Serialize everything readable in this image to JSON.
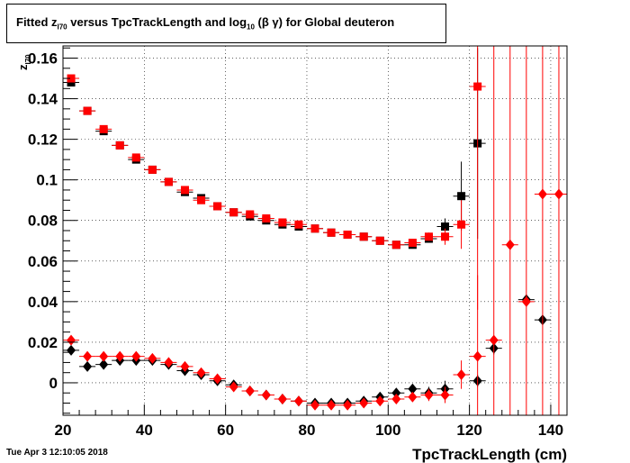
{
  "title": {
    "part1": "Fitted  z",
    "sub1": "I70",
    "part2": "  versus TpcTrackLength and log",
    "sub2": "10",
    "part3": " (β γ) for Global deuteron"
  },
  "timestamp": "Tue Apr  3 12:10:05 2018",
  "chart_data": {
    "type": "scatter",
    "xlabel": "TpcTrackLength (cm)",
    "ylabel": "z",
    "ylabel_sub": "I70",
    "xlim": [
      20,
      144
    ],
    "ylim": [
      -0.016,
      0.166
    ],
    "x_ticks": [
      20,
      40,
      60,
      80,
      100,
      120,
      140
    ],
    "x_tick_labels": [
      "20",
      "40",
      "60",
      "80",
      "100",
      "120",
      "140"
    ],
    "y_ticks": [
      0,
      0.02,
      0.04,
      0.06,
      0.08,
      0.1,
      0.12,
      0.14,
      0.16
    ],
    "y_tick_labels": [
      "0",
      "0.02",
      "0.04",
      "0.06",
      "0.08",
      "0.1",
      "0.12",
      "0.14",
      "0.16"
    ],
    "grid": true,
    "series": [
      {
        "marker": "square",
        "color": "#000000",
        "points": [
          [
            22,
            0.148,
            0
          ],
          [
            26,
            0.134,
            0
          ],
          [
            30,
            0.124,
            0
          ],
          [
            34,
            0.117,
            0
          ],
          [
            38,
            0.11,
            0
          ],
          [
            42,
            0.105,
            0
          ],
          [
            46,
            0.099,
            0
          ],
          [
            50,
            0.094,
            0
          ],
          [
            54,
            0.091,
            0
          ],
          [
            58,
            0.087,
            0
          ],
          [
            62,
            0.084,
            0
          ],
          [
            66,
            0.082,
            0
          ],
          [
            70,
            0.08,
            0
          ],
          [
            74,
            0.078,
            0
          ],
          [
            78,
            0.077,
            0
          ],
          [
            82,
            0.076,
            0
          ],
          [
            86,
            0.074,
            0
          ],
          [
            90,
            0.073,
            0
          ],
          [
            94,
            0.072,
            0
          ],
          [
            98,
            0.07,
            0
          ],
          [
            102,
            0.068,
            0
          ],
          [
            106,
            0.068,
            0
          ],
          [
            110,
            0.071,
            0.002
          ],
          [
            114,
            0.077,
            0.004
          ],
          [
            118,
            0.092,
            0.017
          ],
          [
            122,
            0.118,
            0.047
          ]
        ]
      },
      {
        "marker": "square",
        "color": "#ff0000",
        "points": [
          [
            22,
            0.15,
            0
          ],
          [
            26,
            0.134,
            0
          ],
          [
            30,
            0.125,
            0
          ],
          [
            34,
            0.117,
            0
          ],
          [
            38,
            0.111,
            0
          ],
          [
            42,
            0.105,
            0
          ],
          [
            46,
            0.099,
            0
          ],
          [
            50,
            0.095,
            0
          ],
          [
            54,
            0.09,
            0
          ],
          [
            58,
            0.087,
            0
          ],
          [
            62,
            0.084,
            0
          ],
          [
            66,
            0.083,
            0
          ],
          [
            70,
            0.081,
            0
          ],
          [
            74,
            0.079,
            0
          ],
          [
            78,
            0.078,
            0
          ],
          [
            82,
            0.076,
            0
          ],
          [
            86,
            0.074,
            0
          ],
          [
            90,
            0.073,
            0
          ],
          [
            94,
            0.072,
            0
          ],
          [
            98,
            0.07,
            0
          ],
          [
            102,
            0.068,
            0
          ],
          [
            106,
            0.069,
            0
          ],
          [
            110,
            0.072,
            0.002
          ],
          [
            114,
            0.072,
            0.004
          ],
          [
            118,
            0.078,
            0.012
          ],
          [
            122,
            0.146,
            0.11
          ]
        ]
      },
      {
        "marker": "diamond",
        "color": "#000000",
        "points": [
          [
            22,
            0.016,
            0
          ],
          [
            26,
            0.008,
            0
          ],
          [
            30,
            0.009,
            0
          ],
          [
            34,
            0.011,
            0
          ],
          [
            38,
            0.011,
            0
          ],
          [
            42,
            0.011,
            0
          ],
          [
            46,
            0.009,
            0
          ],
          [
            50,
            0.006,
            0
          ],
          [
            54,
            0.004,
            0
          ],
          [
            58,
            0.001,
            0
          ],
          [
            62,
            -0.001,
            0
          ],
          [
            66,
            -0.004,
            0
          ],
          [
            70,
            -0.006,
            0
          ],
          [
            74,
            -0.008,
            0
          ],
          [
            78,
            -0.009,
            0
          ],
          [
            82,
            -0.01,
            0
          ],
          [
            86,
            -0.01,
            0
          ],
          [
            90,
            -0.01,
            0
          ],
          [
            94,
            -0.009,
            0
          ],
          [
            98,
            -0.007,
            0
          ],
          [
            102,
            -0.005,
            0.002
          ],
          [
            106,
            -0.003,
            0.002
          ],
          [
            110,
            -0.005,
            0.003
          ],
          [
            114,
            -0.003,
            0.004
          ],
          [
            122,
            0.001,
            0.003
          ],
          [
            126,
            0.017,
            0.003
          ],
          [
            134,
            0.041,
            0.002
          ],
          [
            138,
            0.031,
            0.002
          ]
        ]
      },
      {
        "marker": "diamond",
        "color": "#ff0000",
        "points": [
          [
            22,
            0.021,
            0
          ],
          [
            26,
            0.013,
            0
          ],
          [
            30,
            0.013,
            0
          ],
          [
            34,
            0.013,
            0
          ],
          [
            38,
            0.013,
            0
          ],
          [
            42,
            0.012,
            0
          ],
          [
            46,
            0.01,
            0
          ],
          [
            50,
            0.008,
            0
          ],
          [
            54,
            0.005,
            0
          ],
          [
            58,
            0.002,
            0
          ],
          [
            62,
            -0.002,
            0
          ],
          [
            66,
            -0.004,
            0
          ],
          [
            70,
            -0.006,
            0
          ],
          [
            74,
            -0.008,
            0
          ],
          [
            78,
            -0.009,
            0
          ],
          [
            82,
            -0.011,
            0
          ],
          [
            86,
            -0.011,
            0
          ],
          [
            90,
            -0.011,
            0
          ],
          [
            94,
            -0.01,
            0
          ],
          [
            98,
            -0.009,
            0
          ],
          [
            102,
            -0.008,
            0.002
          ],
          [
            106,
            -0.007,
            0.002
          ],
          [
            110,
            -0.006,
            0.003
          ],
          [
            114,
            -0.006,
            0.004
          ],
          [
            118,
            0.004,
            0.007
          ],
          [
            122,
            0.013,
            0.04
          ],
          [
            126,
            0.021,
            0.15
          ],
          [
            130,
            0.068,
            0.2
          ],
          [
            134,
            0.04,
            0.2
          ],
          [
            138,
            0.093,
            0.2
          ],
          [
            142,
            0.093,
            0.2
          ]
        ]
      }
    ]
  }
}
